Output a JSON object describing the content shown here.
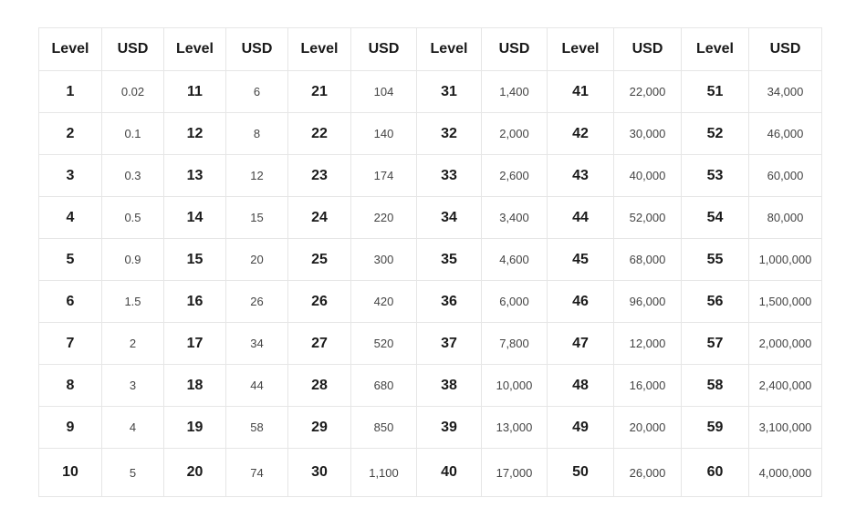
{
  "table": {
    "headers": [
      "Level",
      "USD",
      "Level",
      "USD",
      "Level",
      "USD",
      "Level",
      "USD",
      "Level",
      "USD",
      "Level",
      "USD"
    ],
    "rows": [
      [
        "1",
        "0.02",
        "11",
        "6",
        "21",
        "104",
        "31",
        "1,400",
        "41",
        "22,000",
        "51",
        "34,000"
      ],
      [
        "2",
        "0.1",
        "12",
        "8",
        "22",
        "140",
        "32",
        "2,000",
        "42",
        "30,000",
        "52",
        "46,000"
      ],
      [
        "3",
        "0.3",
        "13",
        "12",
        "23",
        "174",
        "33",
        "2,600",
        "43",
        "40,000",
        "53",
        "60,000"
      ],
      [
        "4",
        "0.5",
        "14",
        "15",
        "24",
        "220",
        "34",
        "3,400",
        "44",
        "52,000",
        "54",
        "80,000"
      ],
      [
        "5",
        "0.9",
        "15",
        "20",
        "25",
        "300",
        "35",
        "4,600",
        "45",
        "68,000",
        "55",
        "1,000,000"
      ],
      [
        "6",
        "1.5",
        "16",
        "26",
        "26",
        "420",
        "36",
        "6,000",
        "46",
        "96,000",
        "56",
        "1,500,000"
      ],
      [
        "7",
        "2",
        "17",
        "34",
        "27",
        "520",
        "37",
        "7,800",
        "47",
        "12,000",
        "57",
        "2,000,000"
      ],
      [
        "8",
        "3",
        "18",
        "44",
        "28",
        "680",
        "38",
        "10,000",
        "48",
        "16,000",
        "58",
        "2,400,000"
      ],
      [
        "9",
        "4",
        "19",
        "58",
        "29",
        "850",
        "39",
        "13,000",
        "49",
        "20,000",
        "59",
        "3,100,000"
      ],
      [
        "10",
        "5",
        "20",
        "74",
        "30",
        "1,100",
        "40",
        "17,000",
        "50",
        "26,000",
        "60",
        "4,000,000"
      ]
    ]
  }
}
